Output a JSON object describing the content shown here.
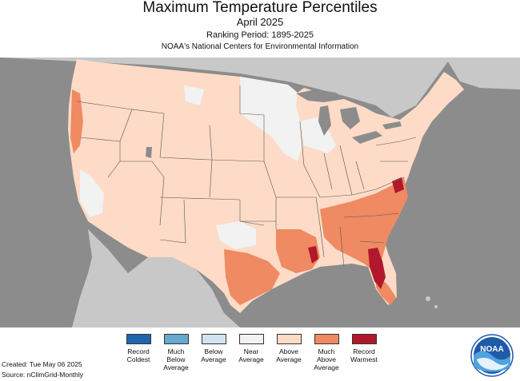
{
  "header": {
    "title": "Maximum Temperature Percentiles",
    "subtitle": "April 2025",
    "ranking": "Ranking Period: 1895-2025",
    "organization": "NOAA's National Centers for Environmental Information"
  },
  "map": {
    "region": "Contiguous United States",
    "categories": {
      "record_coldest": "#2166ac",
      "much_below": "#67a9cf",
      "below": "#d1e5f0",
      "near": "#f2f2f2",
      "above": "#fddbc7",
      "much_above": "#ef8a62",
      "record_warmest": "#b2182b"
    },
    "colors": {
      "ocean_land_outside": "#8c8c8c",
      "land_outside": "#c8c8c8",
      "lakes": "#8c8c8c",
      "borders": "#555555"
    }
  },
  "legend": {
    "items": [
      {
        "label_line1": "Record",
        "label_line2": "Coldest",
        "label_line3": "",
        "color": "#2166ac"
      },
      {
        "label_line1": "Much",
        "label_line2": "Below",
        "label_line3": "Average",
        "color": "#67a9cf"
      },
      {
        "label_line1": "Below",
        "label_line2": "Average",
        "label_line3": "",
        "color": "#d1e5f0"
      },
      {
        "label_line1": "Near",
        "label_line2": "Average",
        "label_line3": "",
        "color": "#f2f2f2"
      },
      {
        "label_line1": "Above",
        "label_line2": "Average",
        "label_line3": "",
        "color": "#fddbc7"
      },
      {
        "label_line1": "Much",
        "label_line2": "Above",
        "label_line3": "Average",
        "color": "#ef8a62"
      },
      {
        "label_line1": "Record",
        "label_line2": "Warmest",
        "label_line3": "",
        "color": "#b2182b"
      }
    ]
  },
  "footer": {
    "created": "Created: Tue May 06 2025",
    "source": "Source: nClimGrid-Monthly"
  },
  "logo": {
    "text": "NOAA"
  }
}
